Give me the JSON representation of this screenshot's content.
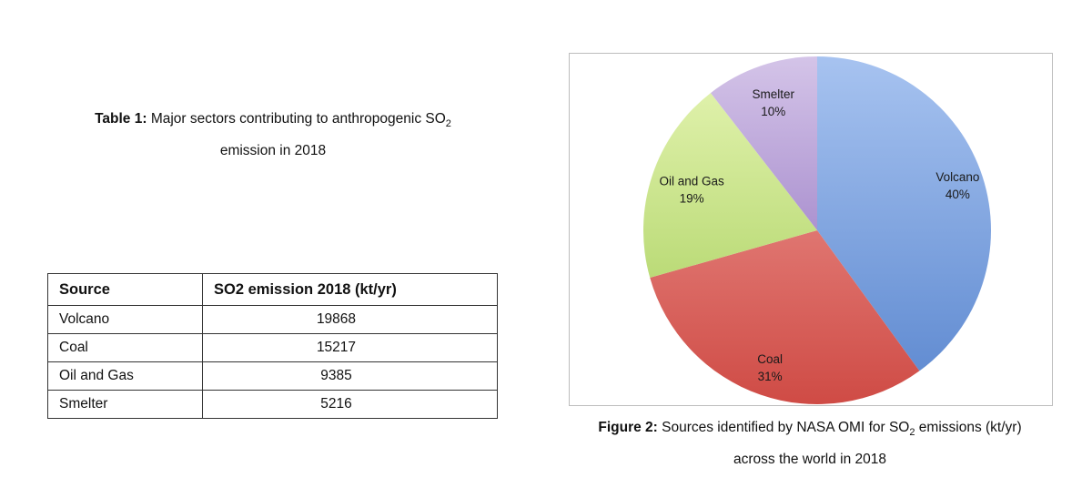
{
  "table_caption": {
    "prefix": "Table 1:",
    "line1": " Major sectors contributing to anthropogenic SO",
    "sub": "2",
    "line2": "emission in 2018"
  },
  "table": {
    "headers": [
      "Source",
      "SO2 emission 2018 (kt/yr)"
    ],
    "rows": [
      [
        "Volcano",
        "19868"
      ],
      [
        "Coal",
        "15217"
      ],
      [
        "Oil and Gas",
        "9385"
      ],
      [
        "Smelter",
        "5216"
      ]
    ]
  },
  "figure_caption": {
    "prefix": "Figure 2:",
    "line1a": " Sources identified by NASA OMI for SO",
    "sub": "2",
    "line1b": " emissions (kt/yr)",
    "line2": "across the world in 2018"
  },
  "chart_data": {
    "type": "pie",
    "start_angle_deg": 0,
    "direction": "clockwise",
    "slices": [
      {
        "label": "Volcano",
        "value": 19868,
        "percent": "40%",
        "color_top": "#a7c3f0",
        "color_bottom": "#5b87cf"
      },
      {
        "label": "Coal",
        "value": 15217,
        "percent": "31%",
        "color_top": "#f0a09c",
        "color_bottom": "#cf4b45"
      },
      {
        "label": "Oil and Gas",
        "value": 9385,
        "percent": "19%",
        "color_top": "#e6f5b4",
        "color_bottom": "#a2cc55"
      },
      {
        "label": "Smelter",
        "value": 5216,
        "percent": "10%",
        "color_top": "#d4c4e8",
        "color_bottom": "#8461b8"
      }
    ]
  }
}
